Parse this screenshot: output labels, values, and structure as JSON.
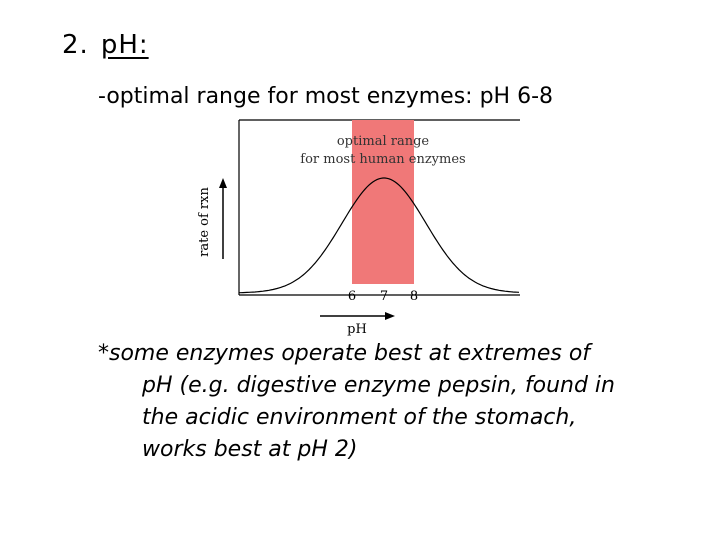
{
  "heading": {
    "number": "2.",
    "label": "pH:"
  },
  "subline": "-optimal range for most enzymes:  pH 6-8",
  "figure": {
    "range_label_1": "optimal range",
    "range_label_2": "for most human enzymes",
    "y_axis_label": "rate of rxn",
    "x_axis_label": "pH",
    "ticks": [
      "6",
      "7",
      "8"
    ],
    "colors": {
      "range": "#f07878",
      "curve": "#000000",
      "frame": "#000000"
    }
  },
  "note": {
    "first_line": "*some enzymes operate best at extremes of",
    "lines": [
      "pH (e.g. digestive enzyme pepsin, found in",
      "the acidic environment of the stomach,",
      "works best at pH 2)"
    ]
  }
}
